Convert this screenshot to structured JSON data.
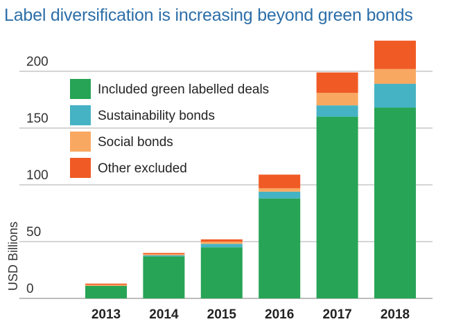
{
  "chart_data": {
    "type": "bar",
    "stacked": true,
    "title": "Label diversification is increasing beyond green bonds",
    "ylabel": "USD Billions",
    "xlabel": "",
    "categories": [
      "2013",
      "2014",
      "2015",
      "2016",
      "2017",
      "2018"
    ],
    "ylim": [
      0,
      225
    ],
    "yticks": [
      0,
      50,
      100,
      150,
      200
    ],
    "grid": true,
    "legend_position": "top-left",
    "series": [
      {
        "name": "Included green labelled deals",
        "color": "#27a456",
        "values": [
          11,
          37,
          45,
          88,
          160,
          168
        ]
      },
      {
        "name": "Sustainability bonds",
        "color": "#45b3c3",
        "values": [
          0,
          1,
          3,
          6,
          10,
          21
        ]
      },
      {
        "name": "Social bonds",
        "color": "#f9a862",
        "values": [
          1,
          1,
          2,
          3,
          11,
          13
        ]
      },
      {
        "name": "Other excluded",
        "color": "#f05a25",
        "values": [
          1,
          1,
          2,
          12,
          18,
          25
        ]
      }
    ]
  }
}
